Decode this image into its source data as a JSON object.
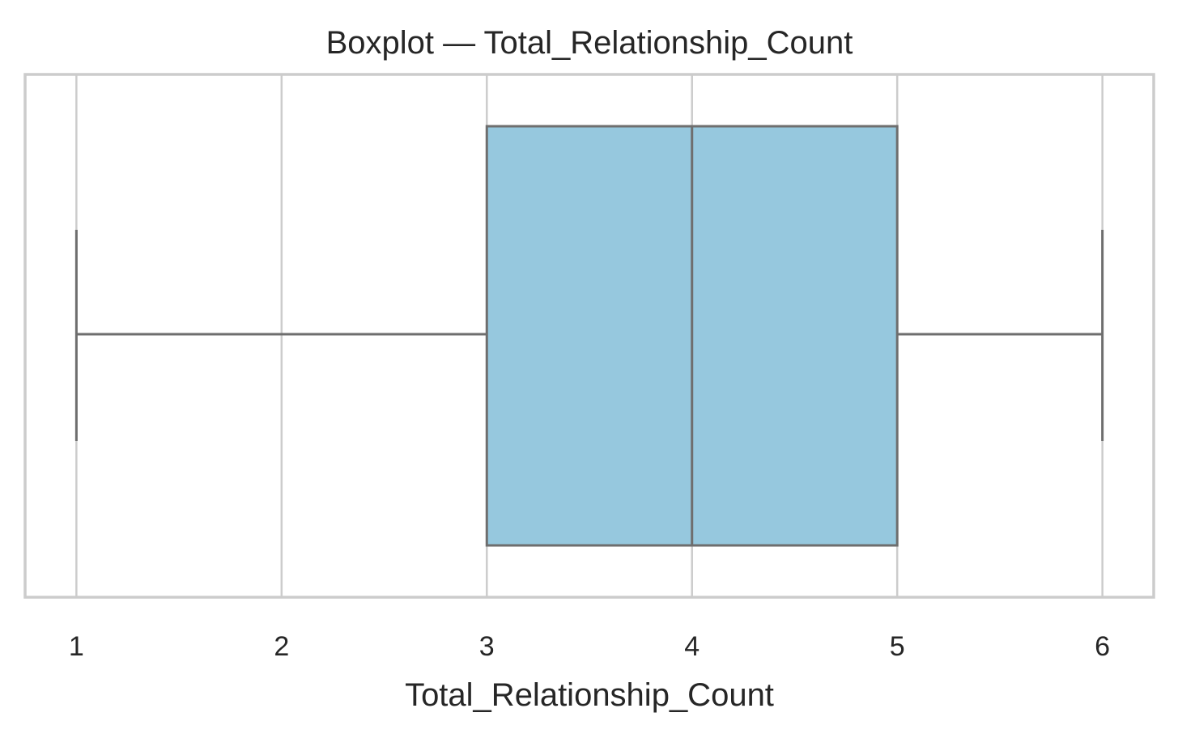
{
  "chart_data": {
    "type": "boxplot",
    "title": "Boxplot — Total_Relationship_Count",
    "xlabel": "Total_Relationship_Count",
    "ylabel": "",
    "xlim": [
      0.75,
      6.25
    ],
    "xticks": [
      1,
      2,
      3,
      4,
      5,
      6
    ],
    "tick_labels": [
      "1",
      "2",
      "3",
      "4",
      "5",
      "6"
    ],
    "grid": true,
    "orientation": "horizontal",
    "box": {
      "whisker_low": 1,
      "q1": 3,
      "median": 4,
      "q3": 5,
      "whisker_high": 6
    },
    "colors": {
      "box_fill": "#96c8de",
      "line": "#6e6e6e",
      "grid": "#cccccc"
    }
  }
}
